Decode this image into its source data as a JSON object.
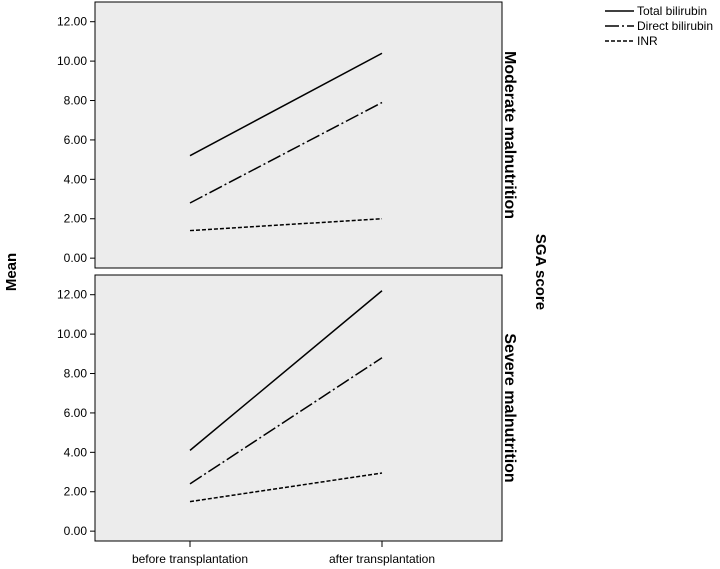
{
  "chart_data": {
    "type": "line",
    "ylabel": "Mean",
    "facet_label": "SGA score",
    "categories": [
      "before transplantation",
      "after transplantation"
    ],
    "y_ticks": [
      "0.00",
      "2.00",
      "4.00",
      "6.00",
      "8.00",
      "10.00",
      "12.00"
    ],
    "ylim": [
      -0.5,
      13
    ],
    "grid": false,
    "legend_position": "top-right",
    "legend": [
      {
        "name": "Total bilirubin",
        "dash": "solid"
      },
      {
        "name": "Direct bilirubin",
        "dash": "long-dash"
      },
      {
        "name": "INR",
        "dash": "short-dash"
      }
    ],
    "panels": [
      {
        "label": "Moderate malnutrition",
        "series": [
          {
            "name": "Total bilirubin",
            "values": [
              5.2,
              10.4
            ]
          },
          {
            "name": "Direct bilirubin",
            "values": [
              2.8,
              7.9
            ]
          },
          {
            "name": "INR",
            "values": [
              1.4,
              2.0
            ]
          }
        ]
      },
      {
        "label": "Severe malnutrition",
        "series": [
          {
            "name": "Total bilirubin",
            "values": [
              4.1,
              12.2
            ]
          },
          {
            "name": "Direct bilirubin",
            "values": [
              2.4,
              8.8
            ]
          },
          {
            "name": "INR",
            "values": [
              1.5,
              2.95
            ]
          }
        ]
      }
    ],
    "colors": {
      "panel_bg": "#ececec",
      "line": "#000000"
    }
  }
}
